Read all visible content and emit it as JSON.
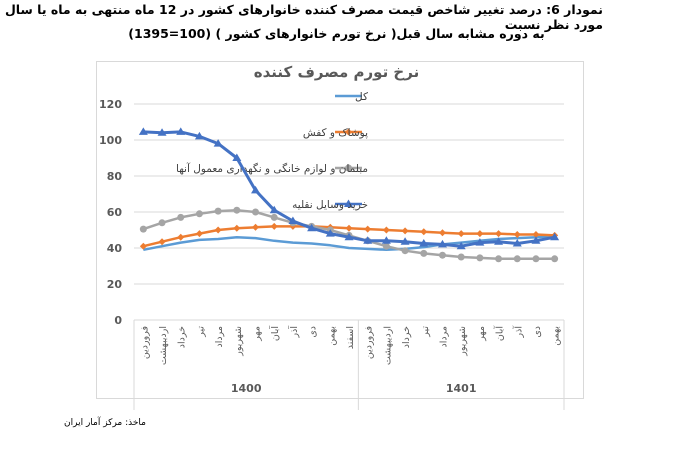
{
  "title_line1": "نمودار 6: درصد تغییر شاخص قیمت مصرف کننده خانوارهای کشور در 12 ماه منتهی به ماه یا سال مورد نظر نسبت",
  "title_line2": "به دوره مشابه سال قبل( نرخ تورم خانوارهای کشور )    (100=1395)",
  "source": "ماخذ: مرکز آمار ایران",
  "chart_data": {
    "type": "line",
    "title": "نرخ تورم مصرف کننده",
    "categories": [
      "فروردین",
      "اردیبهشت",
      "خرداد",
      "تیر",
      "مرداد",
      "شهریور",
      "مهر",
      "آبان",
      "آذر",
      "دی",
      "بهمن",
      "اسفند",
      "فروردین",
      "اردیبهشت",
      "خرداد",
      "تیر",
      "مرداد",
      "شهریور",
      "مهر",
      "آبان",
      "آذر",
      "دی",
      "بهمن"
    ],
    "groups": [
      {
        "label": "1400",
        "count": 12
      },
      {
        "label": "1401",
        "count": 11
      }
    ],
    "ylim": [
      0,
      120
    ],
    "yticks": [
      0,
      20,
      40,
      60,
      80,
      100,
      120
    ],
    "grid": true,
    "legend": "top-right",
    "series": [
      {
        "name": "کل",
        "color": "#5b9bd5",
        "marker": "none",
        "values": [
          39,
          41,
          43,
          44.5,
          45,
          46,
          45.5,
          44,
          43,
          42.5,
          41.5,
          40,
          39.5,
          39,
          39.5,
          40.5,
          42,
          43,
          44,
          45,
          45.5,
          46,
          46.5
        ]
      },
      {
        "name": "پوشاک و کفش",
        "color": "#ed7d31",
        "marker": "diamond",
        "values": [
          41,
          43.5,
          46,
          48,
          50,
          51,
          51.5,
          52,
          52,
          52,
          51.5,
          51,
          50.5,
          50,
          49.5,
          49,
          48.5,
          48,
          48,
          48,
          47.5,
          47.5,
          47
        ]
      },
      {
        "name": "مبلمان و لوازم خانگی و نگهداری معمول آنها",
        "color": "#a5a5a5",
        "marker": "circle",
        "values": [
          50.5,
          54,
          57,
          59,
          60.5,
          61,
          60,
          57,
          54,
          52,
          50,
          47,
          44,
          41,
          38.5,
          37,
          36,
          35,
          34.5,
          34,
          34,
          34,
          34
        ]
      },
      {
        "name": "خرید وسایل نقلیه",
        "color": "#4472c4",
        "marker": "triangle",
        "values": [
          104.5,
          104,
          104.5,
          102,
          98,
          90,
          72,
          61,
          55,
          51,
          48,
          46,
          44,
          44,
          43.5,
          42.5,
          42,
          41,
          43,
          43.5,
          42.5,
          44,
          46
        ]
      }
    ]
  }
}
